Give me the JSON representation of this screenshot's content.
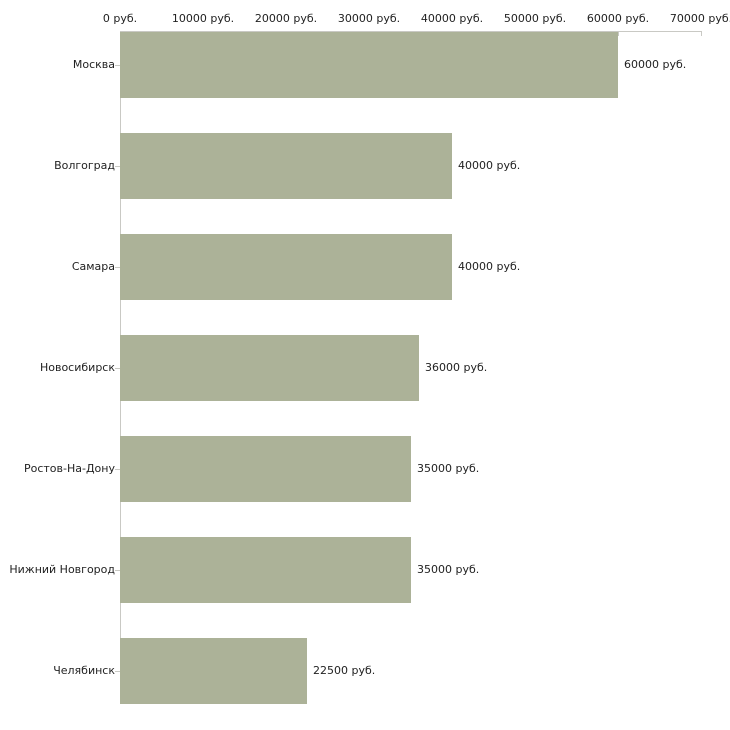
{
  "chart_data": {
    "type": "bar",
    "orientation": "horizontal",
    "unit": "руб.",
    "categories": [
      "Москва",
      "Волгоград",
      "Самара",
      "Новосибирск",
      "Ростов-На-Дону",
      "Нижний Новгород",
      "Челябинск"
    ],
    "values": [
      60000,
      40000,
      40000,
      36000,
      35000,
      35000,
      22500
    ],
    "value_labels": [
      "60000 руб.",
      "40000 руб.",
      "40000 руб.",
      "36000 руб.",
      "35000 руб.",
      "35000 руб.",
      "22500 руб."
    ],
    "x_ticks": [
      0,
      10000,
      20000,
      30000,
      40000,
      50000,
      60000,
      70000
    ],
    "x_tick_labels": [
      "0 руб.",
      "10000 руб.",
      "20000 руб.",
      "30000 руб.",
      "40000 руб.",
      "50000 руб.",
      "60000 руб.",
      "70000 руб."
    ],
    "xlim": [
      0,
      70000
    ],
    "grid": "off",
    "legend": "none",
    "axis_position": "top",
    "colors": {
      "bar": "#acb298",
      "axis": "#c9c9c4",
      "text": "#222222",
      "background": "#ffffff"
    }
  }
}
